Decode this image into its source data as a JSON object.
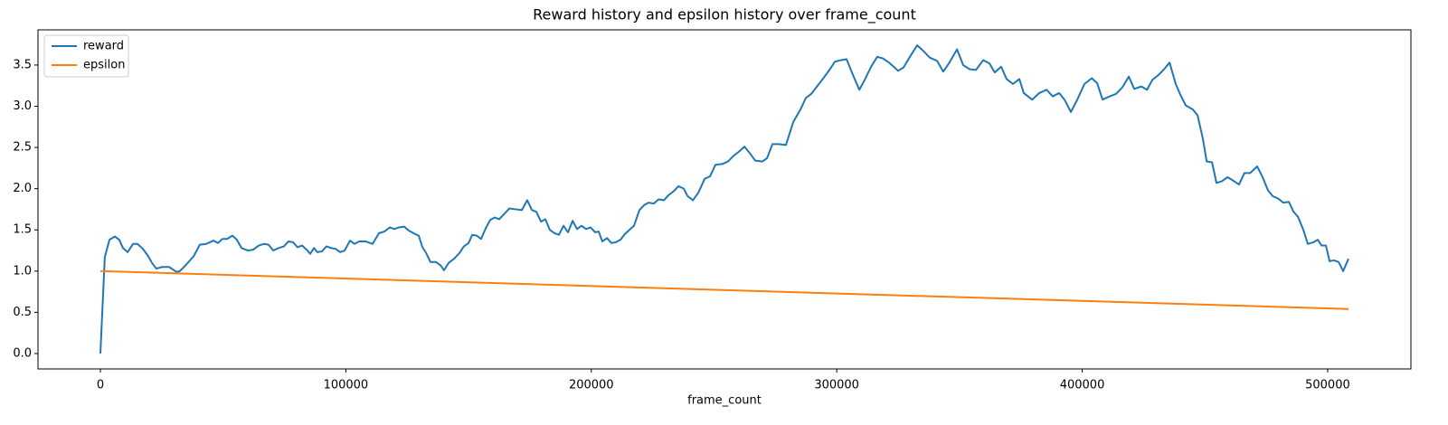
{
  "chart_data": {
    "type": "line",
    "title": "Reward history and epsilon history over frame_count",
    "x_label": "frame_count",
    "xlim": [
      -25425,
      533925
    ],
    "xticks": [
      0,
      100000,
      200000,
      300000,
      400000,
      500000
    ],
    "ylim": [
      -0.187,
      3.927
    ],
    "yticks": [
      {
        "value": 0,
        "label": "0.0"
      },
      {
        "value": 0.5,
        "label": "0.5"
      },
      {
        "value": 1,
        "label": "1.0"
      },
      {
        "value": 1.5,
        "label": "1.5"
      },
      {
        "value": 2,
        "label": "2.0"
      },
      {
        "value": 2.5,
        "label": "2.5"
      },
      {
        "value": 3,
        "label": "3.0"
      },
      {
        "value": 3.5,
        "label": "3.5"
      }
    ],
    "grid": false,
    "legend": "upper left",
    "series": [
      {
        "name": "reward",
        "color": "#1f77b4",
        "x": [
          0,
          1800,
          3700,
          5900,
          7700,
          9200,
          11100,
          13300,
          15100,
          17300,
          19500,
          21000,
          22800,
          25100,
          28000,
          31000,
          32400,
          35000,
          38000,
          40500,
          43100,
          46100,
          47900,
          49700,
          51600,
          53800,
          55600,
          57500,
          60100,
          62300,
          64500,
          66700,
          68500,
          70400,
          72600,
          74800,
          76600,
          78500,
          80300,
          82200,
          84000,
          85500,
          87000,
          88400,
          90300,
          92100,
          94000,
          95800,
          97700,
          99500,
          101700,
          103500,
          105400,
          108000,
          110900,
          113500,
          115700,
          117900,
          119800,
          121600,
          123800,
          125700,
          128200,
          129700,
          131200,
          132700,
          134500,
          136700,
          138600,
          140000,
          141900,
          144100,
          146300,
          148100,
          150000,
          151500,
          153300,
          155100,
          157000,
          158800,
          160700,
          162500,
          164400,
          166600,
          169100,
          171700,
          173900,
          175800,
          177600,
          179500,
          181300,
          183100,
          185000,
          186800,
          188700,
          190500,
          192400,
          194200,
          196000,
          197900,
          199700,
          201600,
          203000,
          204500,
          206400,
          208200,
          210000,
          211900,
          213700,
          217400,
          219600,
          221500,
          223300,
          225500,
          227400,
          229600,
          231400,
          233600,
          235500,
          237700,
          239200,
          241400,
          243600,
          246200,
          248400,
          250600,
          253500,
          255700,
          258000,
          260200,
          262400,
          264600,
          266800,
          269700,
          271600,
          273800,
          276400,
          279300,
          282300,
          285200,
          287400,
          289600,
          292200,
          294800,
          297000,
          299200,
          301800,
          304000,
          306600,
          309200,
          311400,
          314000,
          316500,
          318800,
          321300,
          323200,
          325000,
          327200,
          329800,
          332800,
          335300,
          337900,
          340900,
          343400,
          345700,
          349000,
          351500,
          354100,
          356700,
          359700,
          362200,
          364400,
          367000,
          369200,
          371800,
          374400,
          376200,
          379600,
          382500,
          385500,
          388000,
          390600,
          392800,
          395400,
          398000,
          400900,
          403900,
          406100,
          408300,
          411200,
          413800,
          416400,
          419000,
          421200,
          424100,
          426400,
          428600,
          431100,
          433400,
          435600,
          438100,
          440000,
          442200,
          445100,
          447000,
          449200,
          450700,
          452900,
          454700,
          456900,
          459200,
          461400,
          463900,
          466100,
          468400,
          471300,
          473500,
          475700,
          477600,
          479800,
          482000,
          484200,
          486100,
          487900,
          490100,
          491900,
          494200,
          496000,
          497500,
          499300,
          500800,
          502600,
          504500,
          506300,
          508500
        ],
        "values": [
          0.0,
          1.17,
          1.38,
          1.42,
          1.38,
          1.28,
          1.23,
          1.33,
          1.33,
          1.27,
          1.18,
          1.1,
          1.03,
          1.05,
          1.05,
          0.99,
          1.0,
          1.08,
          1.18,
          1.32,
          1.33,
          1.37,
          1.34,
          1.39,
          1.39,
          1.43,
          1.38,
          1.28,
          1.25,
          1.26,
          1.31,
          1.33,
          1.32,
          1.25,
          1.28,
          1.3,
          1.36,
          1.35,
          1.29,
          1.31,
          1.26,
          1.21,
          1.28,
          1.23,
          1.24,
          1.3,
          1.28,
          1.27,
          1.23,
          1.25,
          1.37,
          1.33,
          1.36,
          1.36,
          1.33,
          1.46,
          1.48,
          1.53,
          1.51,
          1.53,
          1.54,
          1.49,
          1.45,
          1.43,
          1.29,
          1.22,
          1.11,
          1.11,
          1.07,
          1.01,
          1.1,
          1.15,
          1.22,
          1.3,
          1.34,
          1.44,
          1.43,
          1.39,
          1.52,
          1.62,
          1.65,
          1.63,
          1.69,
          1.76,
          1.75,
          1.74,
          1.86,
          1.74,
          1.72,
          1.6,
          1.63,
          1.5,
          1.46,
          1.44,
          1.55,
          1.47,
          1.61,
          1.51,
          1.55,
          1.51,
          1.53,
          1.47,
          1.48,
          1.36,
          1.4,
          1.34,
          1.35,
          1.38,
          1.45,
          1.55,
          1.74,
          1.8,
          1.83,
          1.82,
          1.87,
          1.86,
          1.92,
          1.97,
          2.03,
          2.0,
          1.91,
          1.86,
          1.95,
          2.12,
          2.15,
          2.29,
          2.3,
          2.33,
          2.4,
          2.45,
          2.51,
          2.43,
          2.34,
          2.33,
          2.37,
          2.54,
          2.54,
          2.53,
          2.81,
          2.96,
          3.1,
          3.15,
          3.25,
          3.35,
          3.44,
          3.54,
          3.56,
          3.57,
          3.38,
          3.2,
          3.32,
          3.48,
          3.6,
          3.58,
          3.53,
          3.48,
          3.43,
          3.47,
          3.6,
          3.74,
          3.67,
          3.59,
          3.55,
          3.42,
          3.52,
          3.69,
          3.5,
          3.45,
          3.44,
          3.56,
          3.52,
          3.41,
          3.48,
          3.33,
          3.27,
          3.33,
          3.16,
          3.08,
          3.16,
          3.2,
          3.12,
          3.16,
          3.08,
          2.93,
          3.08,
          3.27,
          3.34,
          3.28,
          3.08,
          3.12,
          3.15,
          3.23,
          3.36,
          3.21,
          3.24,
          3.2,
          3.32,
          3.38,
          3.45,
          3.53,
          3.27,
          3.14,
          3.01,
          2.96,
          2.89,
          2.6,
          2.33,
          2.32,
          2.07,
          2.09,
          2.14,
          2.1,
          2.05,
          2.19,
          2.19,
          2.27,
          2.14,
          1.98,
          1.91,
          1.88,
          1.83,
          1.84,
          1.72,
          1.66,
          1.5,
          1.33,
          1.35,
          1.38,
          1.31,
          1.31,
          1.12,
          1.13,
          1.11,
          1.0,
          1.15
        ]
      },
      {
        "name": "epsilon",
        "color": "#ff7f0e",
        "x": [
          0,
          508500
        ],
        "values": [
          1.0,
          0.54
        ]
      }
    ]
  }
}
